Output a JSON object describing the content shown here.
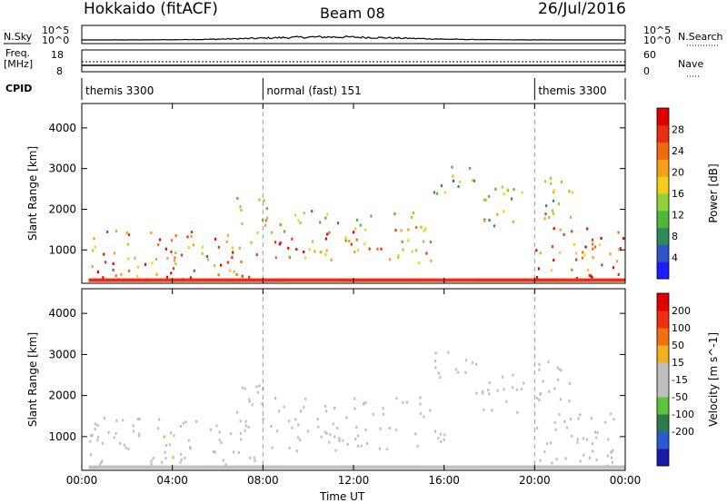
{
  "header": {
    "radar": "Hokkaido (fitACF)",
    "beam": "Beam 08",
    "date": "26/Jul/2016"
  },
  "top_panels": {
    "nsky_label": "N.Sky",
    "nsearch_label": "N.Search",
    "noise_ticks_left": [
      "10^5",
      "10^0"
    ],
    "noise_ticks_right": [
      "10^5",
      "10^0"
    ],
    "freq_label": [
      "Freq.",
      "[MHz]"
    ],
    "freq_ticks": [
      "18",
      "8"
    ],
    "nave_label": "Nave",
    "nave_ticks": [
      "60",
      "0"
    ],
    "cpid_label": "CPID",
    "cpid_segments": [
      {
        "label": "themis 3300",
        "start_hour": 0,
        "end_hour": 8
      },
      {
        "label": "normal (fast) 151",
        "start_hour": 8,
        "end_hour": 20
      },
      {
        "label": "themis 3300",
        "start_hour": 20,
        "end_hour": 24
      }
    ]
  },
  "colors": {
    "power_scale": [
      "#1c1cff",
      "#2b54c4",
      "#2f8a5a",
      "#4fb83a",
      "#8ed43a",
      "#f0d018",
      "#f5a018",
      "#f06a10",
      "#e83010",
      "#e00000"
    ],
    "velocity_scale": [
      "#1a1aa8",
      "#2a5ad0",
      "#2f7a4a",
      "#5cc33a",
      "#bfbfbf",
      "#bfbfbf",
      "#f0b020",
      "#f07010",
      "#f03010",
      "#e00000"
    ],
    "ground_scatter": "#bfbfbf"
  },
  "chart_data": [
    {
      "type": "heatmap",
      "title": "",
      "xlabel": "",
      "ylabel": "Slant Range [km]",
      "x_ticks": [
        "00:00",
        "04:00",
        "08:00",
        "12:00",
        "16:00",
        "20:00",
        "00:00"
      ],
      "y_ticks": [
        "1000",
        "2000",
        "3000",
        "4000"
      ],
      "xlim_hours": [
        0,
        24
      ],
      "ylim_km": [
        180,
        4600
      ],
      "colorbar": {
        "label": "Power [dB]",
        "ticks": [
          "4",
          "8",
          "12",
          "16",
          "20",
          "24",
          "28"
        ],
        "range": [
          0,
          30
        ]
      },
      "scatter_regions": [
        {
          "t0": 0.3,
          "t1": 8.0,
          "r0": 300,
          "r1": 1500,
          "value": 22
        },
        {
          "t0": 6.8,
          "t1": 8.3,
          "r0": 1500,
          "r1": 2400,
          "value": 16
        },
        {
          "t0": 8.3,
          "t1": 12.0,
          "r0": 600,
          "r1": 1500,
          "value": 21
        },
        {
          "t0": 8.5,
          "t1": 11.5,
          "r0": 1600,
          "r1": 2000,
          "value": 19
        },
        {
          "t0": 12.0,
          "t1": 16.0,
          "r0": 700,
          "r1": 1300,
          "value": 20
        },
        {
          "t0": 12.0,
          "t1": 15.5,
          "r0": 1500,
          "r1": 2000,
          "value": 18
        },
        {
          "t0": 15.5,
          "t1": 17.5,
          "r0": 2400,
          "r1": 3100,
          "value": 13
        },
        {
          "t0": 17.3,
          "t1": 19.5,
          "r0": 1600,
          "r1": 2600,
          "value": 14
        },
        {
          "t0": 20.0,
          "t1": 23.9,
          "r0": 300,
          "r1": 1600,
          "value": 24
        },
        {
          "t0": 20.0,
          "t1": 21.8,
          "r0": 1800,
          "r1": 2900,
          "value": 14
        }
      ]
    },
    {
      "type": "heatmap",
      "title": "",
      "xlabel": "Time UT",
      "ylabel": "Slant Range [km]",
      "x_ticks": [
        "00:00",
        "04:00",
        "08:00",
        "12:00",
        "16:00",
        "20:00",
        "00:00"
      ],
      "y_ticks": [
        "1000",
        "2000",
        "3000",
        "4000"
      ],
      "xlim_hours": [
        0,
        24
      ],
      "ylim_km": [
        180,
        4600
      ],
      "colorbar": {
        "label": "Velocity [m s^-1]",
        "ticks": [
          "200",
          "100",
          "50",
          "15",
          "-15",
          "-50",
          "-100",
          "-200"
        ],
        "range": [
          -250,
          250
        ]
      },
      "scatter_regions": [
        {
          "t0": 0.3,
          "t1": 8.0,
          "r0": 300,
          "r1": 1500,
          "value": 0
        },
        {
          "t0": 6.8,
          "t1": 8.3,
          "r0": 1500,
          "r1": 2400,
          "value": 0
        },
        {
          "t0": 8.3,
          "t1": 12.0,
          "r0": 600,
          "r1": 1500,
          "value": 0
        },
        {
          "t0": 8.5,
          "t1": 11.5,
          "r0": 1600,
          "r1": 2000,
          "value": 0
        },
        {
          "t0": 12.0,
          "t1": 16.0,
          "r0": 700,
          "r1": 1300,
          "value": -30
        },
        {
          "t0": 12.0,
          "t1": 15.5,
          "r0": 1500,
          "r1": 2000,
          "value": 0
        },
        {
          "t0": 15.5,
          "t1": 17.5,
          "r0": 2400,
          "r1": 3100,
          "value": 0
        },
        {
          "t0": 17.3,
          "t1": 19.5,
          "r0": 1600,
          "r1": 2600,
          "value": 0
        },
        {
          "t0": 20.0,
          "t1": 23.9,
          "r0": 300,
          "r1": 1600,
          "value": 0
        },
        {
          "t0": 20.0,
          "t1": 21.8,
          "r0": 1800,
          "r1": 2900,
          "value": 30
        }
      ]
    }
  ]
}
